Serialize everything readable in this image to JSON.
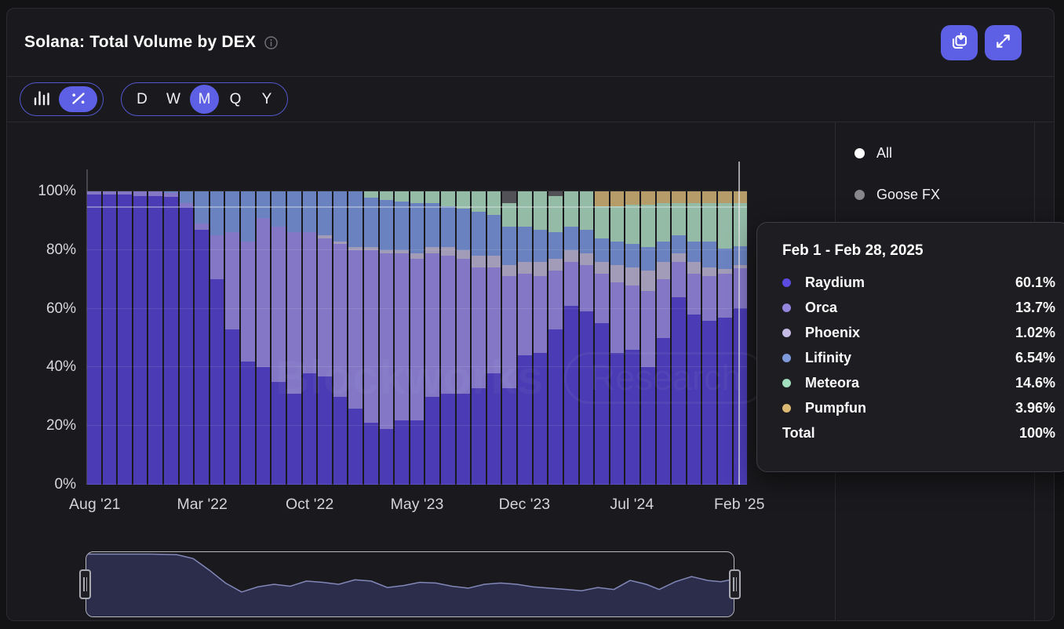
{
  "header": {
    "title": "Solana: Total Volume by DEX",
    "info_icon": "info-icon",
    "actions": [
      {
        "icon": "save-image-icon"
      },
      {
        "icon": "expand-icon"
      }
    ]
  },
  "toolbar": {
    "chart_type": [
      {
        "id": "bars",
        "icon": "bar-chart-icon",
        "selected": false
      },
      {
        "id": "percent",
        "icon": "percent-icon",
        "selected": true
      }
    ],
    "ranges": [
      "D",
      "W",
      "M",
      "Q",
      "Y"
    ],
    "selected_range": "M"
  },
  "legend_panel": {
    "items": [
      {
        "label": "All",
        "color": "#ffffff"
      },
      {
        "label": "Goose FX",
        "color": "#87878c"
      }
    ]
  },
  "tooltip": {
    "title": "Feb 1 - Feb 28, 2025",
    "rows": [
      {
        "name": "Raydium",
        "value": "60.1%",
        "color": "#5c4be0"
      },
      {
        "name": "Orca",
        "value": "13.7%",
        "color": "#9486dc"
      },
      {
        "name": "Phoenix",
        "value": "1.02%",
        "color": "#c6bbe4"
      },
      {
        "name": "Lifinity",
        "value": "6.54%",
        "color": "#7f9ada"
      },
      {
        "name": "Meteora",
        "value": "14.6%",
        "color": "#a2dec0"
      },
      {
        "name": "Pumpfun",
        "value": "3.96%",
        "color": "#dcba74"
      }
    ],
    "total_label": "Total",
    "total_value": "100%"
  },
  "watermark": {
    "brand": "Blockworks",
    "badge": "Research"
  },
  "chart_data": {
    "type": "bar",
    "stacked": true,
    "normalized": true,
    "unit": "%",
    "title": "Solana: Total Volume by DEX",
    "ylim": [
      0,
      100
    ],
    "y_ticks": [
      "0%",
      "20%",
      "40%",
      "60%",
      "80%",
      "100%"
    ],
    "x_ticks": [
      "Aug '21",
      "Mar '22",
      "Oct '22",
      "May '23",
      "Dec '23",
      "Jul '24",
      "Feb '25"
    ],
    "x_tick_indices": [
      0,
      7,
      14,
      21,
      28,
      35,
      42
    ],
    "hovered_category": "Feb '25",
    "categories": [
      "Aug '21",
      "Sep '21",
      "Oct '21",
      "Nov '21",
      "Dec '21",
      "Jan '22",
      "Feb '22",
      "Mar '22",
      "Apr '22",
      "May '22",
      "Jun '22",
      "Jul '22",
      "Aug '22",
      "Sep '22",
      "Oct '22",
      "Nov '22",
      "Dec '22",
      "Jan '23",
      "Feb '23",
      "Mar '23",
      "Apr '23",
      "May '23",
      "Jun '23",
      "Jul '23",
      "Aug '23",
      "Sep '23",
      "Oct '23",
      "Nov '23",
      "Dec '23",
      "Jan '24",
      "Feb '24",
      "Mar '24",
      "Apr '24",
      "May '24",
      "Jun '24",
      "Jul '24",
      "Aug '24",
      "Sep '24",
      "Oct '24",
      "Nov '24",
      "Dec '24",
      "Jan '25",
      "Feb '25"
    ],
    "series": [
      {
        "name": "Raydium",
        "color": "#4b3bb4",
        "values": [
          99,
          99,
          99,
          98.5,
          98.5,
          98,
          95,
          87,
          70,
          53,
          42,
          40,
          35,
          31,
          38,
          37,
          30,
          26,
          21,
          19,
          22,
          22,
          30,
          31,
          31,
          33,
          38,
          33,
          44,
          45,
          53,
          61,
          59,
          55,
          45,
          46,
          40,
          50,
          64,
          58,
          56,
          57,
          60.1
        ]
      },
      {
        "name": "Orca",
        "color": "#8478c6",
        "values": [
          1,
          1,
          1,
          1.5,
          1.5,
          1.5,
          1,
          2,
          15,
          33,
          41,
          51,
          53,
          55,
          48,
          47,
          52,
          54,
          59,
          60,
          57,
          55,
          49,
          47,
          46,
          41,
          36,
          38,
          28,
          26,
          20,
          15,
          16,
          17,
          24,
          22,
          26,
          20,
          12,
          14,
          15,
          15,
          13.7
        ]
      },
      {
        "name": "Phoenix",
        "color": "#a39cb8",
        "values": [
          0,
          0,
          0,
          0,
          0,
          0,
          0,
          0,
          0,
          0,
          0,
          0,
          0,
          0,
          0,
          1,
          1,
          1,
          1,
          1,
          1,
          2,
          2,
          3,
          3,
          4,
          4,
          4,
          4,
          5,
          4,
          4,
          4,
          4,
          6,
          6,
          7,
          6,
          3,
          4,
          3,
          1.5,
          1.02
        ]
      },
      {
        "name": "Lifinity",
        "color": "#6a83c0",
        "values": [
          0,
          0,
          0,
          0,
          0,
          0.5,
          4,
          11,
          15,
          14,
          17,
          9,
          12,
          14,
          14,
          15,
          17,
          19,
          17,
          17,
          16.5,
          17,
          15,
          14,
          14,
          15,
          14,
          13,
          12,
          11,
          9,
          8,
          8,
          8,
          8,
          8,
          8,
          7,
          6,
          7,
          9,
          7,
          6.54
        ]
      },
      {
        "name": "Meteora",
        "color": "#93bba6",
        "values": [
          0,
          0,
          0,
          0,
          0,
          0,
          0,
          0,
          0,
          0,
          0,
          0,
          0,
          0,
          0,
          0,
          0,
          0,
          2,
          3,
          3.5,
          4,
          4,
          5,
          6,
          7,
          8,
          8,
          12,
          13,
          12.5,
          12,
          13,
          11,
          12,
          13.5,
          14.5,
          13,
          11,
          13,
          13,
          15.5,
          14.6
        ]
      },
      {
        "name": "Pumpfun",
        "color": "#b69c68",
        "values": [
          0,
          0,
          0,
          0,
          0,
          0,
          0,
          0,
          0,
          0,
          0,
          0,
          0,
          0,
          0,
          0,
          0,
          0,
          0,
          0,
          0,
          0,
          0,
          0,
          0,
          0,
          0,
          0,
          0,
          0,
          0,
          0,
          0,
          5,
          5,
          4.5,
          4.5,
          4,
          4,
          4,
          4,
          4,
          3.96
        ]
      },
      {
        "name": "Other",
        "color": "#515157",
        "values": [
          0,
          0,
          0,
          0,
          0,
          0,
          0,
          0,
          0,
          0,
          0,
          0,
          0,
          0,
          0,
          0,
          0,
          0,
          0,
          0,
          0,
          0,
          0,
          0,
          0,
          0,
          0,
          4,
          0,
          0,
          1.5,
          0,
          0,
          0,
          0,
          0,
          0,
          0,
          0,
          0,
          0,
          0,
          0
        ]
      }
    ]
  },
  "brush": {
    "points": [
      [
        0,
        0.97
      ],
      [
        0.05,
        0.97
      ],
      [
        0.1,
        0.97
      ],
      [
        0.14,
        0.96
      ],
      [
        0.165,
        0.9
      ],
      [
        0.19,
        0.72
      ],
      [
        0.215,
        0.52
      ],
      [
        0.24,
        0.38
      ],
      [
        0.265,
        0.46
      ],
      [
        0.29,
        0.5
      ],
      [
        0.315,
        0.47
      ],
      [
        0.34,
        0.55
      ],
      [
        0.365,
        0.53
      ],
      [
        0.39,
        0.5
      ],
      [
        0.415,
        0.57
      ],
      [
        0.44,
        0.55
      ],
      [
        0.465,
        0.45
      ],
      [
        0.49,
        0.48
      ],
      [
        0.515,
        0.53
      ],
      [
        0.54,
        0.52
      ],
      [
        0.565,
        0.47
      ],
      [
        0.59,
        0.44
      ],
      [
        0.615,
        0.5
      ],
      [
        0.64,
        0.52
      ],
      [
        0.665,
        0.5
      ],
      [
        0.69,
        0.46
      ],
      [
        0.715,
        0.44
      ],
      [
        0.74,
        0.42
      ],
      [
        0.765,
        0.4
      ],
      [
        0.79,
        0.45
      ],
      [
        0.815,
        0.42
      ],
      [
        0.84,
        0.56
      ],
      [
        0.865,
        0.5
      ],
      [
        0.885,
        0.42
      ],
      [
        0.91,
        0.54
      ],
      [
        0.935,
        0.62
      ],
      [
        0.96,
        0.56
      ],
      [
        0.98,
        0.54
      ],
      [
        1,
        0.58
      ]
    ],
    "fill": "#2e3050",
    "stroke": "#8287b8"
  }
}
